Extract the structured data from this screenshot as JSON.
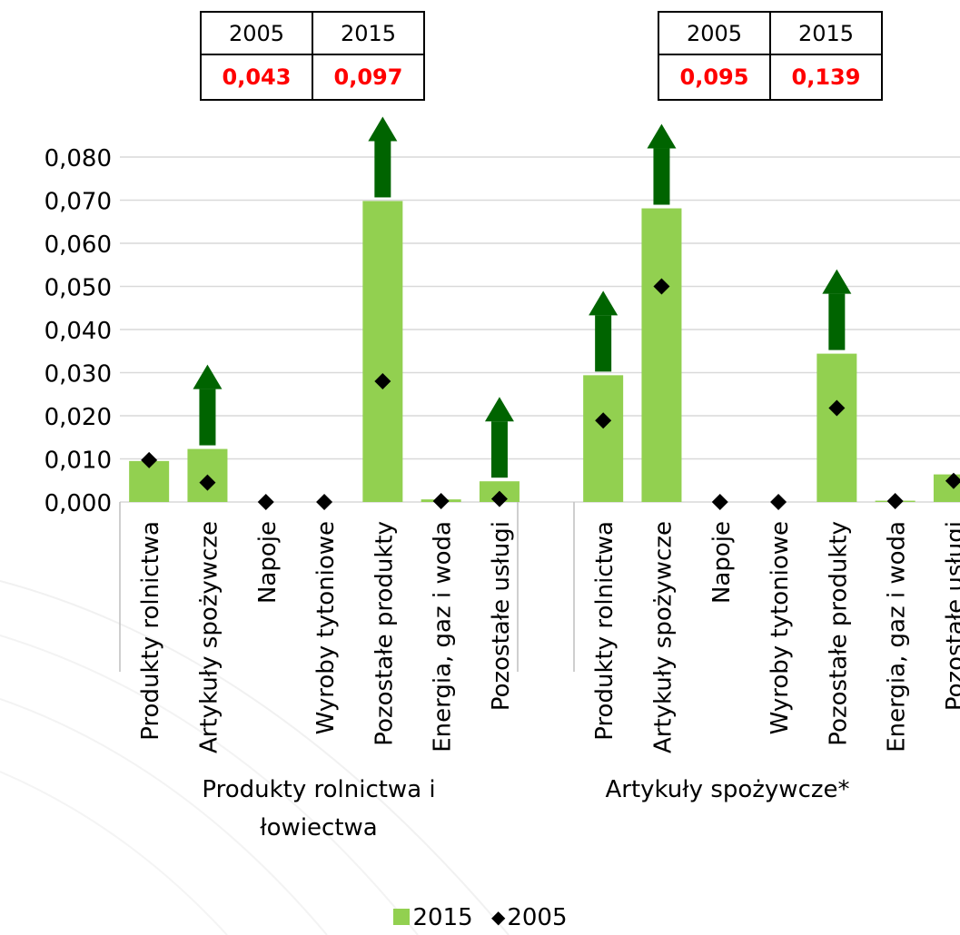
{
  "colors": {
    "bar_2015": "#92d050",
    "marker_2005": "#000000",
    "arrow": "#006400",
    "summary_value": "#ff0000",
    "grid": "#d9d9d9",
    "axis": "#bfbfbf"
  },
  "summary_boxes": [
    {
      "year_a": "2005",
      "year_b": "2015",
      "value_a": "0,043",
      "value_b": "0,097"
    },
    {
      "year_a": "2005",
      "year_b": "2015",
      "value_a": "0,095",
      "value_b": "0,139"
    }
  ],
  "legend": {
    "bar_label": "2015",
    "marker_label": "2005"
  },
  "chart_data": {
    "type": "bar",
    "title": "",
    "xlabel": "",
    "ylabel": "",
    "ylim": [
      0,
      0.08
    ],
    "yticks": [
      0,
      0.01,
      0.02,
      0.03,
      0.04,
      0.05,
      0.06,
      0.07,
      0.08
    ],
    "yticklabels": [
      "0,000",
      "0,010",
      "0,020",
      "0,030",
      "0,040",
      "0,050",
      "0,060",
      "0,070",
      "0,080"
    ],
    "grid": true,
    "legend_position": "bottom",
    "groups": [
      {
        "label": "Produkty rolnictwa i łowiectwa",
        "label_lines": [
          "Produkty rolnictwa i",
          "łowiectwa"
        ],
        "categories": [
          "Produkty rolnictwa",
          "Artykuły spożywcze",
          "Napoje",
          "Wyroby tytoniowe",
          "Pozostałe produkty",
          "Energia, gaz i woda",
          "Pozostałe usługi"
        ],
        "values_2015": [
          0.0095,
          0.0123,
          0.0,
          0.0,
          0.0698,
          0.0006,
          0.0048
        ],
        "values_2005": [
          0.0097,
          0.0045,
          0.0,
          0.0,
          0.028,
          0.0002,
          0.0007
        ],
        "arrows": [
          false,
          true,
          false,
          false,
          true,
          false,
          true
        ]
      },
      {
        "label": "Artykuły spożywcze*",
        "label_lines": [
          "Artykuły spożywcze*"
        ],
        "categories": [
          "Produkty rolnictwa",
          "Artykuły spożywcze",
          "Napoje",
          "Wyroby tytoniowe",
          "Pozostałe produkty",
          "Energia, gaz i woda",
          "Pozostałe usługi"
        ],
        "values_2015": [
          0.0294,
          0.0681,
          0.0,
          0.0,
          0.0344,
          0.0003,
          0.0064
        ],
        "values_2005": [
          0.0189,
          0.05,
          0.0,
          0.0,
          0.0218,
          0.0002,
          0.0049
        ],
        "arrows": [
          true,
          true,
          false,
          false,
          true,
          false,
          false
        ]
      }
    ],
    "series": [
      {
        "name": "2015",
        "kind": "bar"
      },
      {
        "name": "2005",
        "kind": "marker"
      }
    ]
  }
}
